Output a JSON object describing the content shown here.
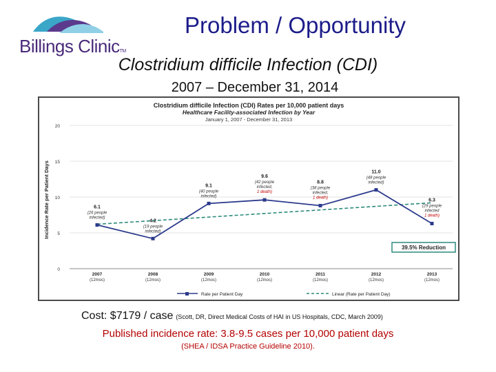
{
  "logo": {
    "name": "Billings Clinic",
    "tm": "TM"
  },
  "header": {
    "title": "Problem / Opportunity",
    "subtitle": "Clostridium difficile Infection (CDI)",
    "dates": "2007 – December 31, 2014"
  },
  "chart_data": {
    "type": "line",
    "title": "Clostridium difficile Infection (CDI) Rates per 10,000 patient days",
    "subtitle1": "Healthcare Facility-associated Infection by Year",
    "subtitle2": "January 1, 2007 - December 31, 2013",
    "ylabel": "Incidence Rate per Patient Days",
    "ylim": [
      0,
      20
    ],
    "yticks": [
      "0",
      "5",
      "10",
      "15",
      "20"
    ],
    "categories": [
      "2007",
      "2008",
      "2009",
      "2010",
      "2011",
      "2012",
      "2013"
    ],
    "category_sub": "(12mos)",
    "series": [
      {
        "name": "Rate per Patient Day",
        "values": [
          6.1,
          4.2,
          9.1,
          9.6,
          8.8,
          11.0,
          6.3
        ],
        "color": "#2b3a8c"
      },
      {
        "name": "Linear (Rate per Patient Day)",
        "values": [
          6.2,
          6.7,
          7.2,
          7.7,
          8.2,
          8.7,
          9.2
        ],
        "color": "#2a8a7a",
        "style": "dashed"
      }
    ],
    "point_labels": [
      {
        "value": "6.1",
        "lines": [
          "(26 people",
          "infected)"
        ],
        "red": ""
      },
      {
        "value": "4.2",
        "lines": [
          "(19 people",
          "infected)"
        ],
        "red": ""
      },
      {
        "value": "9.1",
        "lines": [
          "(40 people",
          "infected)"
        ],
        "red": ""
      },
      {
        "value": "9.6",
        "lines": [
          "(42 people",
          "infected,"
        ],
        "red": "1 death)"
      },
      {
        "value": "8.8",
        "lines": [
          "(38 people",
          "infected,"
        ],
        "red": "1 death)"
      },
      {
        "value": "11.0",
        "lines": [
          "(48 people",
          "infected)"
        ],
        "red": ""
      },
      {
        "value": "6.3",
        "lines": [
          "(29 people",
          "infected"
        ],
        "red": "1 death)"
      }
    ],
    "annotation": "39.5% Reduction",
    "legend": [
      "Rate per Patient Day",
      "Linear (Rate per Patient Day)"
    ]
  },
  "footer": {
    "cost_main": "Cost: $7179  / case",
    "cost_cite": "(Scott, DR, Direct Medical Costs of HAI in US Hospitals, CDC, March 2009)",
    "published": "Published incidence rate: 3.8-9.5 cases per 10,000 patient days",
    "guideline": "(SHEA / IDSA Practice Guideline 2010)."
  },
  "colors": {
    "title": "#1c1c8a",
    "accent_red": "#b40000",
    "logo_purple": "#4a2a7a",
    "logo_teal": "#3aa6c8"
  }
}
